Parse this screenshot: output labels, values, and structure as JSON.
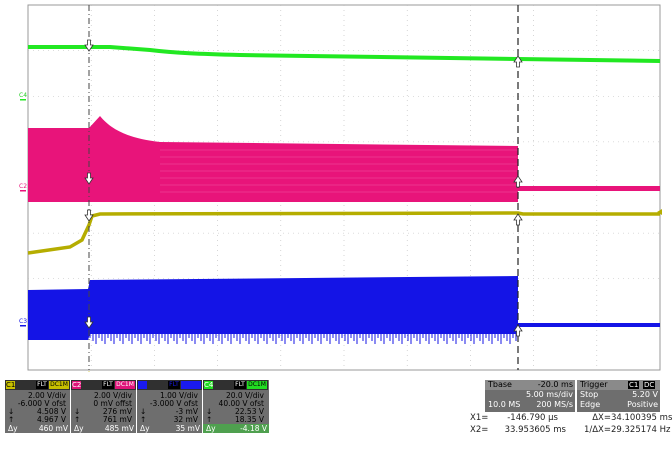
{
  "markers": {
    "c4": "C4",
    "c2": "C2",
    "c3": "C3"
  },
  "channels": [
    {
      "tag": "C1",
      "color": "#c8c000",
      "filter": "FLT",
      "coupling": "DC1M",
      "vdiv": "2.00 V/div",
      "offset": "-6.000 V ofst",
      "rows": [
        {
          "sym": "↓",
          "val": "4.508 V"
        },
        {
          "sym": "↑",
          "val": "4.967 V"
        },
        {
          "sym": "Δy",
          "val": "460 mV"
        }
      ]
    },
    {
      "tag": "C2",
      "color": "#e0157a",
      "filter": "FLT",
      "coupling": "DC1M",
      "vdiv": "2.00 V/div",
      "offset": "0 mV offst",
      "rows": [
        {
          "sym": "↓",
          "val": "276 mV"
        },
        {
          "sym": "↑",
          "val": "761 mV"
        },
        {
          "sym": "Δy",
          "val": "485 mV"
        }
      ]
    },
    {
      "tag": "C3",
      "color": "#1a1aee",
      "filter": "FLT",
      "coupling": "DC1M",
      "vdiv": "1.00 V/div",
      "offset": "-3.000 V ofst",
      "rows": [
        {
          "sym": "↓",
          "val": "-3 mV"
        },
        {
          "sym": "↑",
          "val": "32 mV"
        },
        {
          "sym": "Δy",
          "val": "35 mV"
        }
      ]
    },
    {
      "tag": "C4",
      "color": "#22dd22",
      "filter": "FLT",
      "coupling": "DC1M",
      "vdiv": "20.0 V/div",
      "offset": "40.00 V ofst",
      "rows": [
        {
          "sym": "↓",
          "val": "22.53 V"
        },
        {
          "sym": "↑",
          "val": "18.35 V"
        },
        {
          "sym": "Δy",
          "val": "-4.18 V"
        }
      ]
    }
  ],
  "timebase": {
    "label": "Tbase",
    "delay": "-20.0 ms",
    "tdiv": "5.00 ms/div",
    "samples": "10.0 MS",
    "rate": "200 MS/s"
  },
  "trigger": {
    "label": "Trigger",
    "src": "C1",
    "coupling": "DC",
    "mode": "Stop",
    "level": "5.20 V",
    "type": "Edge",
    "slope": "Positive"
  },
  "cursors": {
    "x1_label": "X1=",
    "x1": "-146.790 µs",
    "dx_label": "ΔX=",
    "dx": "34.100395 ms",
    "x2_label": "X2=",
    "x2": "33.953605 ms",
    "inv_label": "1/ΔX=",
    "inv": "29.325174 Hz"
  },
  "colors": {
    "c1": "#b5ad00",
    "c2": "#e8147a",
    "c3": "#1414e6",
    "c4": "#22e822",
    "grid": "#bbbbbb"
  }
}
